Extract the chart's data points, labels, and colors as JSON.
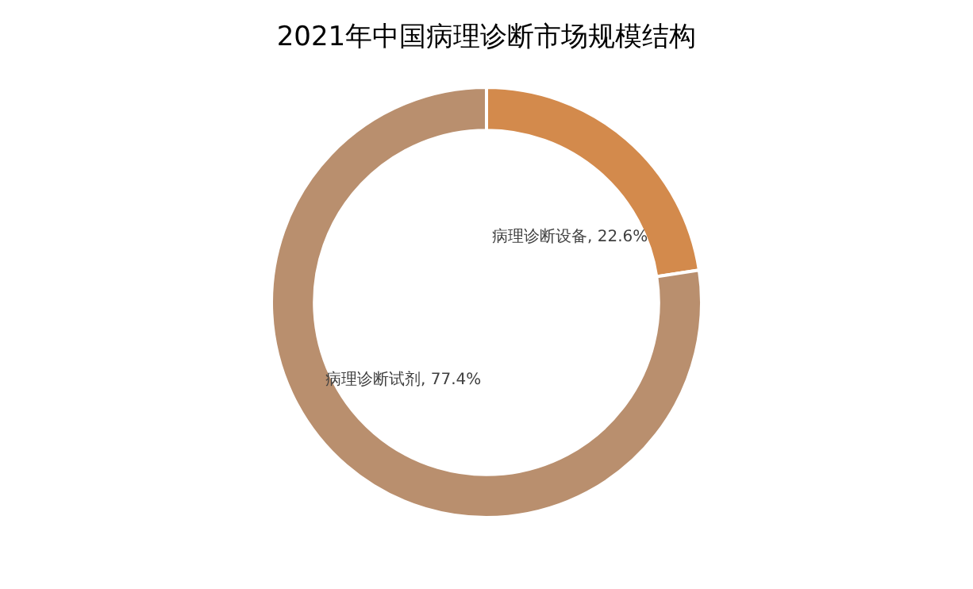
{
  "chart_data": {
    "type": "donut",
    "title": "2021年中国病理诊断市场规模结构",
    "categories": [
      "病理诊断设备",
      "病理诊断试剂"
    ],
    "values": [
      22.6,
      77.4
    ],
    "colors": [
      "#d38a4c",
      "#b98f6e"
    ],
    "value_labels": [
      "22.6%",
      "77.4%"
    ],
    "legend": false
  }
}
